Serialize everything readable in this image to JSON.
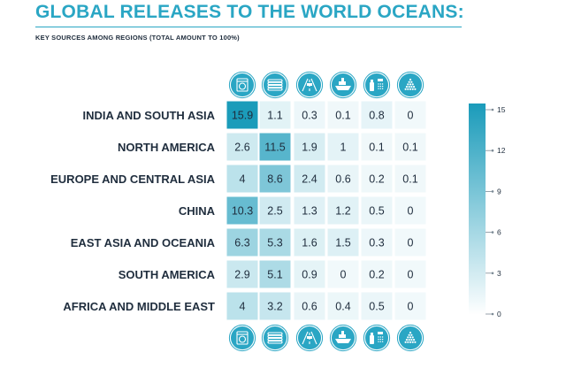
{
  "header": {
    "title": "GLOBAL RELEASES TO THE WORLD OCEANS:",
    "subtitle": "KEY SOURCES AMONG REGIONS (TOTAL AMOUNT TO 100%)"
  },
  "chart_data": {
    "type": "heatmap",
    "title": "GLOBAL RELEASES TO THE WORLD OCEANS:",
    "subtitle": "KEY SOURCES AMONG REGIONS (TOTAL AMOUNT TO 100%)",
    "columns": [
      {
        "icon": "washing-machine-icon"
      },
      {
        "icon": "tire-icon"
      },
      {
        "icon": "road-icon"
      },
      {
        "icon": "ship-icon"
      },
      {
        "icon": "personal-care-icon"
      },
      {
        "icon": "plastic-pellets-icon"
      }
    ],
    "rows": [
      "INDIA AND SOUTH ASIA",
      "NORTH AMERICA",
      "EUROPE AND CENTRAL ASIA",
      "CHINA",
      "EAST ASIA AND OCEANIA",
      "SOUTH AMERICA",
      "AFRICA AND MIDDLE EAST"
    ],
    "values": [
      [
        15.9,
        1.1,
        0.3,
        0.1,
        0.8,
        0
      ],
      [
        2.6,
        11.5,
        1.9,
        1,
        0.1,
        0.1
      ],
      [
        4,
        8.6,
        2.4,
        0.6,
        0.2,
        0.1
      ],
      [
        10.3,
        2.5,
        1.3,
        1.2,
        0.5,
        0
      ],
      [
        6.3,
        5.3,
        1.6,
        1.5,
        0.3,
        0
      ],
      [
        2.9,
        5.1,
        0.9,
        0,
        0.2,
        0
      ],
      [
        4,
        3.2,
        0.6,
        0.4,
        0.5,
        0
      ]
    ],
    "color_scale": {
      "min": 0,
      "max": 16,
      "low_color": "#ffffff",
      "high_color": "#1a9bba",
      "ticks": [
        0,
        3,
        6,
        9,
        12,
        15
      ]
    },
    "icon_color": "#2aa6c4"
  }
}
